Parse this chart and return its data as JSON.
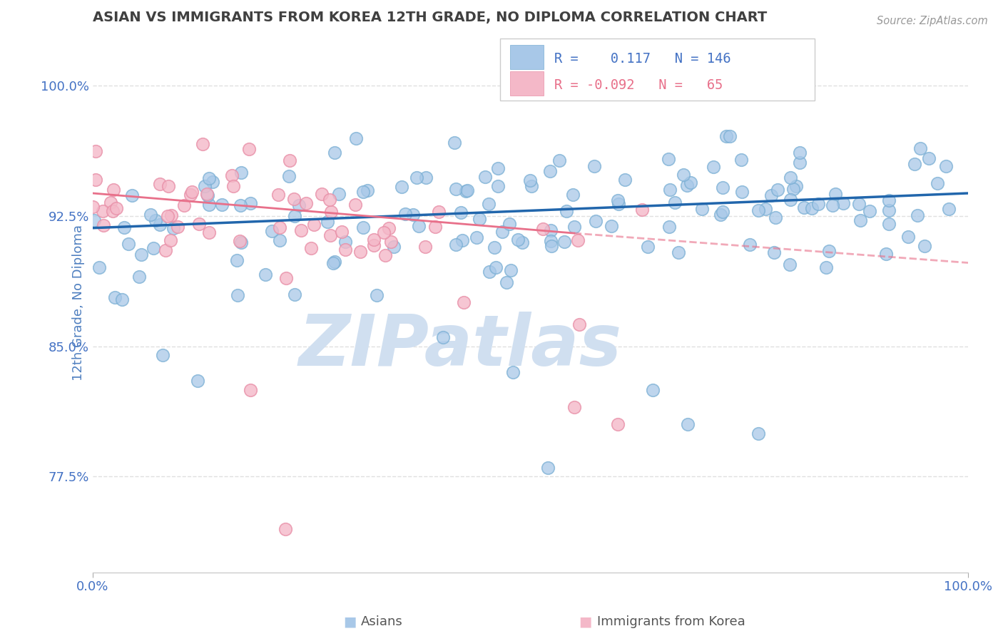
{
  "title": "ASIAN VS IMMIGRANTS FROM KOREA 12TH GRADE, NO DIPLOMA CORRELATION CHART",
  "source": "Source: ZipAtlas.com",
  "ylabel": "12th Grade, No Diploma",
  "xlim": [
    0,
    100
  ],
  "ylim": [
    72,
    103
  ],
  "yticks": [
    77.5,
    85.0,
    92.5,
    100.0
  ],
  "ytick_labels": [
    "77.5%",
    "85.0%",
    "92.5%",
    "100.0%"
  ],
  "legend_r1_val": "0.117",
  "legend_n1_val": "146",
  "legend_r2_val": "-0.092",
  "legend_n2_val": "65",
  "blue_color": "#a8c8e8",
  "blue_edge_color": "#7aafd4",
  "pink_color": "#f4b8c8",
  "pink_edge_color": "#e890a8",
  "blue_line_color": "#2166ac",
  "pink_line_color": "#e8708a",
  "watermark": "ZIPatlas",
  "watermark_color": "#d0dff0",
  "background_color": "#ffffff",
  "grid_color": "#e0e0e0",
  "title_color": "#404040",
  "axis_label_color": "#5080c0",
  "tick_label_color": "#4472c4",
  "blue_trend_x0": 0,
  "blue_trend_x1": 100,
  "blue_trend_y0": 91.8,
  "blue_trend_y1": 93.8,
  "pink_trend_x0": 0,
  "pink_trend_x1": 55,
  "pink_trend_y0": 93.8,
  "pink_trend_y1": 91.5,
  "pink_dash_x0": 55,
  "pink_dash_x1": 100,
  "pink_dash_y0": 91.5,
  "pink_dash_y1": 89.8
}
